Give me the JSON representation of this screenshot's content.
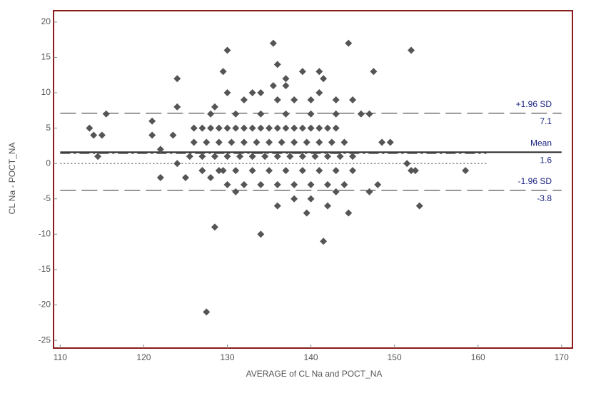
{
  "chart_data": {
    "type": "scatter",
    "x_label": "AVERAGE of CL Na and POCT_NA",
    "y_label": "CL Na - POCT_NA",
    "color": "#555555",
    "xlim": [
      109.2,
      171.3
    ],
    "ylim": [
      -26.1,
      21.6
    ],
    "xticks": [
      110,
      120,
      130,
      140,
      150,
      160,
      170
    ],
    "yticks": [
      20,
      15,
      10,
      5,
      0,
      -5,
      -10,
      -15,
      -20,
      -25
    ],
    "x": [
      113.5,
      114,
      115,
      115.5,
      114.5,
      121,
      121,
      122,
      124,
      124,
      129.5,
      130,
      135.5,
      144.5,
      152,
      147.5,
      136,
      137,
      139,
      141,
      141.5,
      133,
      130,
      134,
      135.5,
      137,
      141,
      138,
      143,
      145,
      128.5,
      123.5,
      122,
      125,
      124,
      128.5,
      127.5,
      134,
      141.5,
      139.5,
      144.5,
      136,
      142,
      152,
      153,
      158.5,
      151.5,
      152.5,
      149.5,
      148.5,
      147,
      146,
      148,
      147,
      131,
      127,
      128,
      129.5,
      138,
      140,
      143,
      126,
      127,
      128,
      129,
      130,
      131,
      132,
      133,
      134,
      135,
      136,
      137,
      138,
      139,
      140,
      141,
      142,
      143,
      126,
      127.5,
      129,
      130.5,
      132,
      133.5,
      135,
      136.5,
      138,
      139.5,
      141,
      142.5,
      144,
      125.5,
      127,
      128.5,
      130,
      131.5,
      133,
      134.5,
      136,
      137.5,
      139,
      140.5,
      142,
      143.5,
      145,
      127,
      129,
      131,
      133,
      135,
      137,
      139,
      141,
      143,
      145,
      130,
      132,
      134,
      136,
      138,
      140,
      142,
      144,
      128,
      131,
      134,
      137,
      140,
      143,
      132,
      136,
      140
    ],
    "values": [
      5,
      4,
      4,
      7,
      1,
      6,
      4,
      2,
      12,
      8,
      13,
      16,
      17,
      17,
      16,
      13,
      14,
      12,
      13,
      13,
      12,
      10,
      10,
      10,
      11,
      11,
      10,
      9,
      9,
      9,
      8,
      4,
      -2,
      -2,
      0,
      -9,
      -21,
      -10,
      -11,
      -7,
      -7,
      -6,
      -6,
      -1,
      -6,
      -1,
      0,
      -1,
      3,
      3,
      7,
      7,
      -3,
      -4,
      -4,
      -1,
      -2,
      -1,
      -5,
      -5,
      -4,
      5,
      5,
      5,
      5,
      5,
      5,
      5,
      5,
      5,
      5,
      5,
      5,
      5,
      5,
      5,
      5,
      5,
      5,
      3,
      3,
      3,
      3,
      3,
      3,
      3,
      3,
      3,
      3,
      3,
      3,
      3,
      1,
      1,
      1,
      1,
      1,
      1,
      1,
      1,
      1,
      1,
      1,
      1,
      1,
      1,
      -1,
      -1,
      -1,
      -1,
      -1,
      -1,
      -1,
      -1,
      -1,
      -1,
      -3,
      -3,
      -3,
      -3,
      -3,
      -3,
      -3,
      -3,
      7,
      7,
      7,
      7,
      7,
      7,
      9,
      9,
      9
    ],
    "reference_lines": [
      {
        "name": "+1.96 SD",
        "value": 7.1,
        "style": "dashed"
      },
      {
        "name": "Mean",
        "value": 1.6,
        "style": "solid"
      },
      {
        "name": "-1.96 SD",
        "value": -3.8,
        "style": "dashed"
      },
      {
        "value": 1.4,
        "style": "dashdot",
        "xmax": 161
      },
      {
        "value": 0,
        "style": "dotted",
        "xmax": 161
      }
    ]
  }
}
